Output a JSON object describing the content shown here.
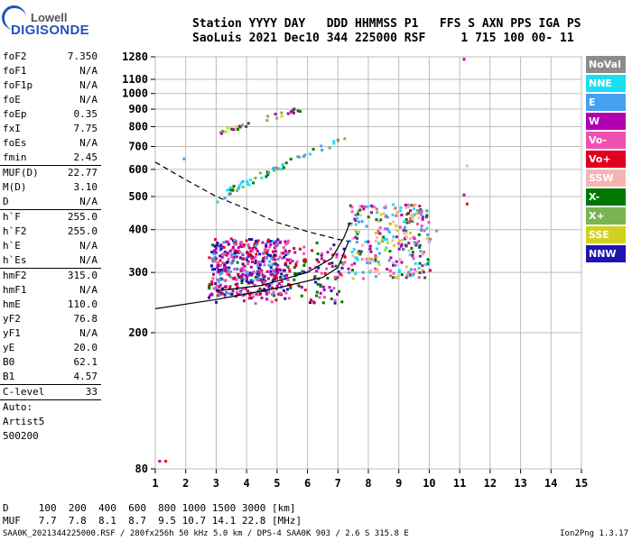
{
  "logo": {
    "line1": "Lowell",
    "line2": "DIGISONDE"
  },
  "header": {
    "line1": "Station YYYY DAY   DDD HHMMSS P1   FFS S AXN PPS IGA PS",
    "line2": "SaoLuis 2021 Dec10 344 225000 RSF     1 715 100 00- 11"
  },
  "params": [
    {
      "k": "foF2",
      "v": "7.350"
    },
    {
      "k": "foF1",
      "v": "N/A"
    },
    {
      "k": "foF1p",
      "v": "N/A"
    },
    {
      "k": "foE",
      "v": "N/A"
    },
    {
      "k": "foEp",
      "v": "0.35"
    },
    {
      "k": "fxI",
      "v": "7.75"
    },
    {
      "k": "foEs",
      "v": "N/A"
    },
    {
      "k": "fmin",
      "v": "2.45",
      "sepAfter": true
    },
    {
      "k": "MUF(D)",
      "v": "22.77"
    },
    {
      "k": "M(D)",
      "v": "3.10"
    },
    {
      "k": "D",
      "v": "N/A",
      "sepAfter": true
    },
    {
      "k": "h`F",
      "v": "255.0"
    },
    {
      "k": "h`F2",
      "v": "255.0"
    },
    {
      "k": "h`E",
      "v": "N/A"
    },
    {
      "k": "h`Es",
      "v": "N/A",
      "sepAfter": true
    },
    {
      "k": "hmF2",
      "v": "315.0"
    },
    {
      "k": "hmF1",
      "v": "N/A"
    },
    {
      "k": "hmE",
      "v": "110.0"
    },
    {
      "k": "yF2",
      "v": "76.8"
    },
    {
      "k": "yF1",
      "v": "N/A"
    },
    {
      "k": "yE",
      "v": "20.0"
    },
    {
      "k": "B0",
      "v": "62.1"
    },
    {
      "k": "B1",
      "v": "4.57",
      "sepAfter": true
    },
    {
      "k": "C-level",
      "v": "33",
      "sepAfter": true
    }
  ],
  "auto": [
    "Auto:",
    "Artist5",
    "500200"
  ],
  "legend": [
    {
      "label": "NoVal",
      "color": "#8c8c8c"
    },
    {
      "label": "NNE",
      "color": "#19e0f0"
    },
    {
      "label": "E",
      "color": "#46a0f0"
    },
    {
      "label": "W",
      "color": "#b000b0"
    },
    {
      "label": "Vo-",
      "color": "#f050b0"
    },
    {
      "label": "Vo+",
      "color": "#e0001e"
    },
    {
      "label": "SSW",
      "color": "#f5b4b4"
    },
    {
      "label": "X-",
      "color": "#007800"
    },
    {
      "label": "X+",
      "color": "#78b450"
    },
    {
      "label": "SSE",
      "color": "#d2d21e"
    },
    {
      "label": "NNW",
      "color": "#1e14b4"
    }
  ],
  "footer": {
    "d_line": "D     100  200  400  600  800 1000 1500 3000 [km]",
    "muf_line": "MUF   7.7  7.8  8.1  8.7  9.5 10.7 14.1 22.8 [MHz]",
    "file_line": "SAA0K_2021344225000.RSF / 280fx256h 50 kHz 5.0 km / DPS-4 SAA0K 903 / 2.6 S 315.8 E",
    "version": "Ion2Png 1.3.17"
  },
  "chart_data": {
    "type": "scatter",
    "title": "",
    "xlabel": "",
    "ylabel": "",
    "xlim": [
      1,
      15
    ],
    "ylim": [
      80,
      1280
    ],
    "xticks": [
      1,
      2,
      3,
      4,
      5,
      6,
      7,
      8,
      9,
      10,
      11,
      12,
      13,
      14,
      15
    ],
    "yticks": [
      80,
      200,
      300,
      400,
      500,
      600,
      700,
      800,
      900,
      1000,
      1100,
      1280
    ],
    "grid": true,
    "scale": "y plotted as log10(height)",
    "clusters": [
      {
        "name": "o-trace F2",
        "f": [
          2.7,
          7.2
        ],
        "h": [
          245,
          370
        ],
        "colors": [
          "#b000b0",
          "#e0001e",
          "#007800",
          "#f050b0",
          "#1e14b4"
        ]
      },
      {
        "name": "spread scatter",
        "f": [
          2.8,
          5.4
        ],
        "h": [
          260,
          380
        ],
        "colors": [
          "#b000b0",
          "#1e14b4",
          "#f050b0",
          "#e0001e",
          "#46a0f0"
        ]
      },
      {
        "name": "spread F",
        "f": [
          7.3,
          10.0
        ],
        "h": [
          290,
          480
        ],
        "colors": [
          "#f050b0",
          "#d2d21e",
          "#46a0f0",
          "#b000b0",
          "#19e0f0",
          "#007800",
          "#f5b4b4"
        ]
      },
      {
        "name": "2nd hop",
        "f": [
          3.0,
          7.2
        ],
        "h": [
          500,
          740
        ],
        "colors": [
          "#19e0f0",
          "#007800",
          "#46a0f0",
          "#78b450"
        ]
      },
      {
        "name": "3rd hop",
        "f": [
          3.0,
          5.8
        ],
        "h": [
          770,
          910
        ],
        "colors": [
          "#007800",
          "#b000b0",
          "#d2d21e",
          "#78b450"
        ]
      }
    ],
    "curves": [
      {
        "name": "o-profile",
        "style": "solid",
        "points": [
          [
            1,
            235
          ],
          [
            3,
            250
          ],
          [
            5,
            270
          ],
          [
            6.5,
            290
          ],
          [
            7.0,
            310
          ],
          [
            7.35,
            370
          ]
        ]
      },
      {
        "name": "hop profile",
        "style": "solid",
        "points": [
          [
            3.0,
            265
          ],
          [
            4.5,
            275
          ],
          [
            6.0,
            300
          ],
          [
            6.8,
            330
          ],
          [
            7.2,
            380
          ],
          [
            7.4,
            420
          ]
        ]
      },
      {
        "name": "topside",
        "style": "dashed",
        "points": [
          [
            1.0,
            630
          ],
          [
            2.0,
            560
          ],
          [
            3.0,
            500
          ],
          [
            4.0,
            460
          ],
          [
            5.0,
            420
          ],
          [
            6.0,
            395
          ],
          [
            7.0,
            375
          ],
          [
            7.35,
            370
          ]
        ]
      }
    ]
  }
}
